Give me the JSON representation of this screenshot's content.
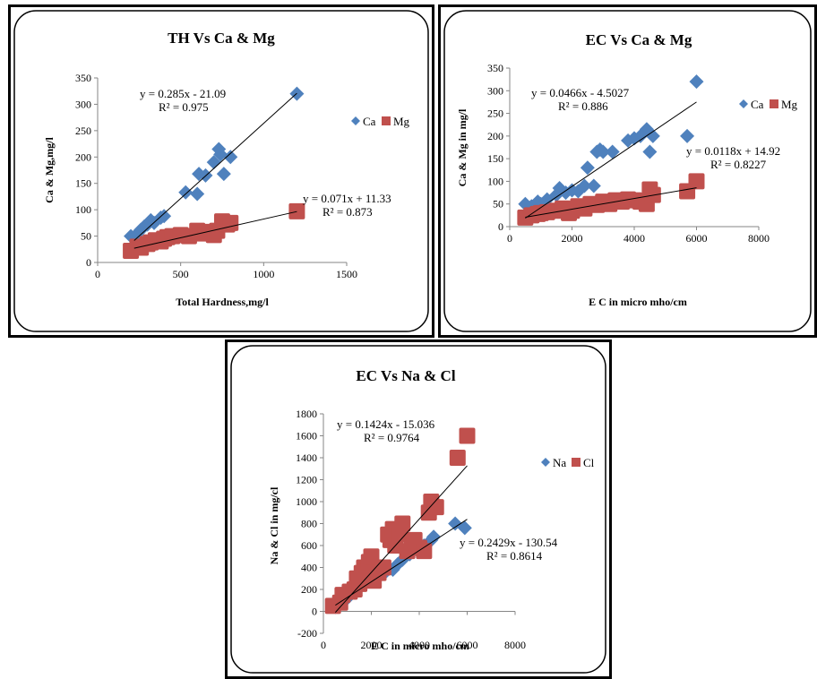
{
  "chart_data": [
    {
      "type": "scatter",
      "title": "TH Vs Ca & Mg",
      "xlabel": "Total Hardness,mg/l",
      "ylabel": "Ca & Mg,mg/l",
      "xlim": [
        0,
        1500
      ],
      "ylim": [
        0,
        350
      ],
      "xticks": [
        "0",
        "500",
        "1000",
        "1500"
      ],
      "yticks": [
        "0",
        "50",
        "100",
        "150",
        "200",
        "250",
        "300",
        "350"
      ],
      "grid": false,
      "legend_position": "right",
      "series": [
        {
          "name": "Ca",
          "marker": "diamond",
          "color": "#4F81BD",
          "points": [
            [
              200,
              50
            ],
            [
              240,
              55
            ],
            [
              260,
              62
            ],
            [
              280,
              68
            ],
            [
              300,
              72
            ],
            [
              320,
              80
            ],
            [
              340,
              75
            ],
            [
              380,
              85
            ],
            [
              400,
              88
            ],
            [
              530,
              133
            ],
            [
              600,
              130
            ],
            [
              610,
              168
            ],
            [
              650,
              165
            ],
            [
              700,
              190
            ],
            [
              730,
              215
            ],
            [
              740,
              205
            ],
            [
              760,
              168
            ],
            [
              800,
              200
            ],
            [
              1200,
              320
            ]
          ],
          "equation": "y = 0.285x - 21.09",
          "r2": "R² = 0.975",
          "trend": {
            "slope": 0.285,
            "intercept": -21.09,
            "x_range": [
              220,
              1200
            ]
          }
        },
        {
          "name": "Mg",
          "marker": "square",
          "color": "#C0504D",
          "points": [
            [
              200,
              22
            ],
            [
              240,
              30
            ],
            [
              260,
              28
            ],
            [
              300,
              35
            ],
            [
              320,
              38
            ],
            [
              350,
              42
            ],
            [
              380,
              40
            ],
            [
              400,
              45
            ],
            [
              420,
              48
            ],
            [
              450,
              50
            ],
            [
              500,
              52
            ],
            [
              550,
              50
            ],
            [
              600,
              60
            ],
            [
              620,
              55
            ],
            [
              650,
              58
            ],
            [
              700,
              52
            ],
            [
              720,
              60
            ],
            [
              750,
              78
            ],
            [
              780,
              72
            ],
            [
              800,
              75
            ],
            [
              1200,
              97
            ]
          ],
          "equation": "y = 0.071x + 11.33",
          "r2": "R² = 0.873",
          "trend": {
            "slope": 0.071,
            "intercept": 11.33,
            "x_range": [
              220,
              1200
            ]
          }
        }
      ]
    },
    {
      "type": "scatter",
      "title": "EC Vs Ca & Mg",
      "xlabel": "E C in micro mho/cm",
      "ylabel": "Ca & Mg in mg/l",
      "xlim": [
        0,
        8000
      ],
      "ylim": [
        0,
        350
      ],
      "xticks": [
        "0",
        "2000",
        "4000",
        "6000",
        "8000"
      ],
      "yticks": [
        "0",
        "50",
        "100",
        "150",
        "200",
        "250",
        "300",
        "350"
      ],
      "grid": false,
      "legend_position": "right",
      "series": [
        {
          "name": "Ca",
          "marker": "diamond",
          "color": "#4F81BD",
          "points": [
            [
              500,
              50
            ],
            [
              700,
              45
            ],
            [
              900,
              55
            ],
            [
              1000,
              50
            ],
            [
              1200,
              60
            ],
            [
              1500,
              70
            ],
            [
              1600,
              85
            ],
            [
              1800,
              75
            ],
            [
              2000,
              80
            ],
            [
              2200,
              78
            ],
            [
              2400,
              90
            ],
            [
              2500,
              130
            ],
            [
              2700,
              90
            ],
            [
              2800,
              165
            ],
            [
              2900,
              170
            ],
            [
              3000,
              165
            ],
            [
              3300,
              165
            ],
            [
              3800,
              190
            ],
            [
              4000,
              195
            ],
            [
              4200,
              200
            ],
            [
              4400,
              215
            ],
            [
              4500,
              165
            ],
            [
              4600,
              200
            ],
            [
              5700,
              200
            ],
            [
              6000,
              320
            ]
          ],
          "equation": "y = 0.0466x - 4.5027",
          "r2": "R² = 0.886",
          "trend": {
            "slope": 0.0466,
            "intercept": -4.5027,
            "x_range": [
              500,
              6000
            ]
          }
        },
        {
          "name": "Mg",
          "marker": "square",
          "color": "#C0504D",
          "points": [
            [
              500,
              20
            ],
            [
              700,
              25
            ],
            [
              900,
              28
            ],
            [
              1000,
              30
            ],
            [
              1200,
              32
            ],
            [
              1500,
              35
            ],
            [
              1700,
              40
            ],
            [
              1900,
              30
            ],
            [
              2000,
              35
            ],
            [
              2200,
              45
            ],
            [
              2400,
              40
            ],
            [
              2600,
              50
            ],
            [
              2800,
              48
            ],
            [
              3000,
              55
            ],
            [
              3200,
              50
            ],
            [
              3400,
              58
            ],
            [
              3600,
              55
            ],
            [
              3800,
              60
            ],
            [
              4000,
              58
            ],
            [
              4200,
              55
            ],
            [
              4400,
              50
            ],
            [
              4500,
              82
            ],
            [
              4600,
              70
            ],
            [
              5700,
              78
            ],
            [
              6000,
              100
            ]
          ],
          "equation": "y = 0.0118x + 14.92",
          "r2": "R² = 0.8227",
          "trend": {
            "slope": 0.0118,
            "intercept": 14.92,
            "x_range": [
              500,
              6000
            ]
          }
        }
      ]
    },
    {
      "type": "scatter",
      "title": "EC Vs Na & Cl",
      "xlabel": "E C in micro mho/cm",
      "ylabel": "Na & Cl in mg/cl",
      "xlim": [
        0,
        8000
      ],
      "ylim": [
        -200,
        1800
      ],
      "xticks": [
        "0",
        "2000",
        "4000",
        "6000",
        "8000"
      ],
      "yticks": [
        "-200",
        "0",
        "200",
        "400",
        "600",
        "800",
        "1000",
        "1200",
        "1400",
        "1600",
        "1800"
      ],
      "grid": false,
      "legend_position": "right",
      "series": [
        {
          "name": "Na",
          "marker": "diamond",
          "color": "#4F81BD",
          "points": [
            [
              500,
              40
            ],
            [
              800,
              80
            ],
            [
              1000,
              120
            ],
            [
              1300,
              170
            ],
            [
              1500,
              220
            ],
            [
              1700,
              250
            ],
            [
              1900,
              280
            ],
            [
              2100,
              300
            ],
            [
              2300,
              330
            ],
            [
              2600,
              360
            ],
            [
              2900,
              380
            ],
            [
              3100,
              430
            ],
            [
              3300,
              470
            ],
            [
              3600,
              520
            ],
            [
              3900,
              560
            ],
            [
              4200,
              600
            ],
            [
              4500,
              650
            ],
            [
              4600,
              680
            ],
            [
              5500,
              800
            ],
            [
              5900,
              760
            ]
          ],
          "equation": "y = 0.1424x - 15.036",
          "r2": "R² = 0.9764",
          "trend": {
            "slope": 0.1424,
            "intercept": -15.036,
            "x_range": [
              500,
              6000
            ]
          }
        },
        {
          "name": "Cl",
          "marker": "square",
          "color": "#C0504D",
          "points": [
            [
              400,
              50
            ],
            [
              700,
              80
            ],
            [
              800,
              150
            ],
            [
              1100,
              180
            ],
            [
              1300,
              200
            ],
            [
              1400,
              300
            ],
            [
              1500,
              250
            ],
            [
              1600,
              350
            ],
            [
              1700,
              400
            ],
            [
              1800,
              300
            ],
            [
              1900,
              450
            ],
            [
              2000,
              500
            ],
            [
              2100,
              280
            ],
            [
              2300,
              350
            ],
            [
              2500,
              400
            ],
            [
              2700,
              700
            ],
            [
              2800,
              650
            ],
            [
              2900,
              750
            ],
            [
              3000,
              600
            ],
            [
              3200,
              700
            ],
            [
              3300,
              800
            ],
            [
              3500,
              550
            ],
            [
              3700,
              600
            ],
            [
              3800,
              650
            ],
            [
              4000,
              580
            ],
            [
              4200,
              550
            ],
            [
              4400,
              900
            ],
            [
              4500,
              1000
            ],
            [
              4700,
              950
            ],
            [
              5600,
              1400
            ],
            [
              6000,
              1600
            ]
          ],
          "equation": "y = 0.2429x - 130.54",
          "r2": "R² = 0.8614",
          "trend": {
            "slope": 0.2429,
            "intercept": -130.54,
            "x_range": [
              500,
              6000
            ]
          }
        }
      ]
    }
  ]
}
